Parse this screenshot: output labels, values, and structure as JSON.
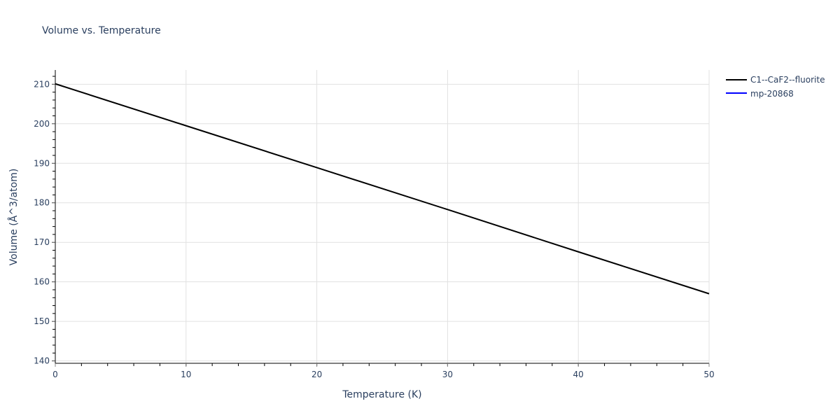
{
  "chart_data": {
    "type": "line",
    "title": "Volume vs. Temperature",
    "xlabel": "Temperature (K)",
    "ylabel": "Volume (Å^3/atom)",
    "xlim": [
      0,
      50
    ],
    "ylim": [
      139.4,
      213.6
    ],
    "x_ticks": [
      0,
      10,
      20,
      30,
      40,
      50
    ],
    "y_ticks": [
      140,
      150,
      160,
      170,
      180,
      190,
      200,
      210
    ],
    "grid": true,
    "legend_position": "top-right-outside",
    "series": [
      {
        "name": "C1--CaF2--fluorite",
        "color": "#000000",
        "x": [
          0,
          10,
          20,
          30,
          40,
          50
        ],
        "values": [
          210.1,
          199.5,
          188.9,
          178.3,
          167.6,
          157.0
        ]
      },
      {
        "name": "mp-20868",
        "color": "#0000ff",
        "x": [],
        "values": []
      }
    ]
  },
  "labels": {
    "title": "Volume vs. Temperature",
    "xlabel": "Temperature (K)",
    "ylabel": "Volume (Å^3/atom)",
    "legend": [
      "C1--CaF2--fluorite",
      "mp-20868"
    ]
  }
}
